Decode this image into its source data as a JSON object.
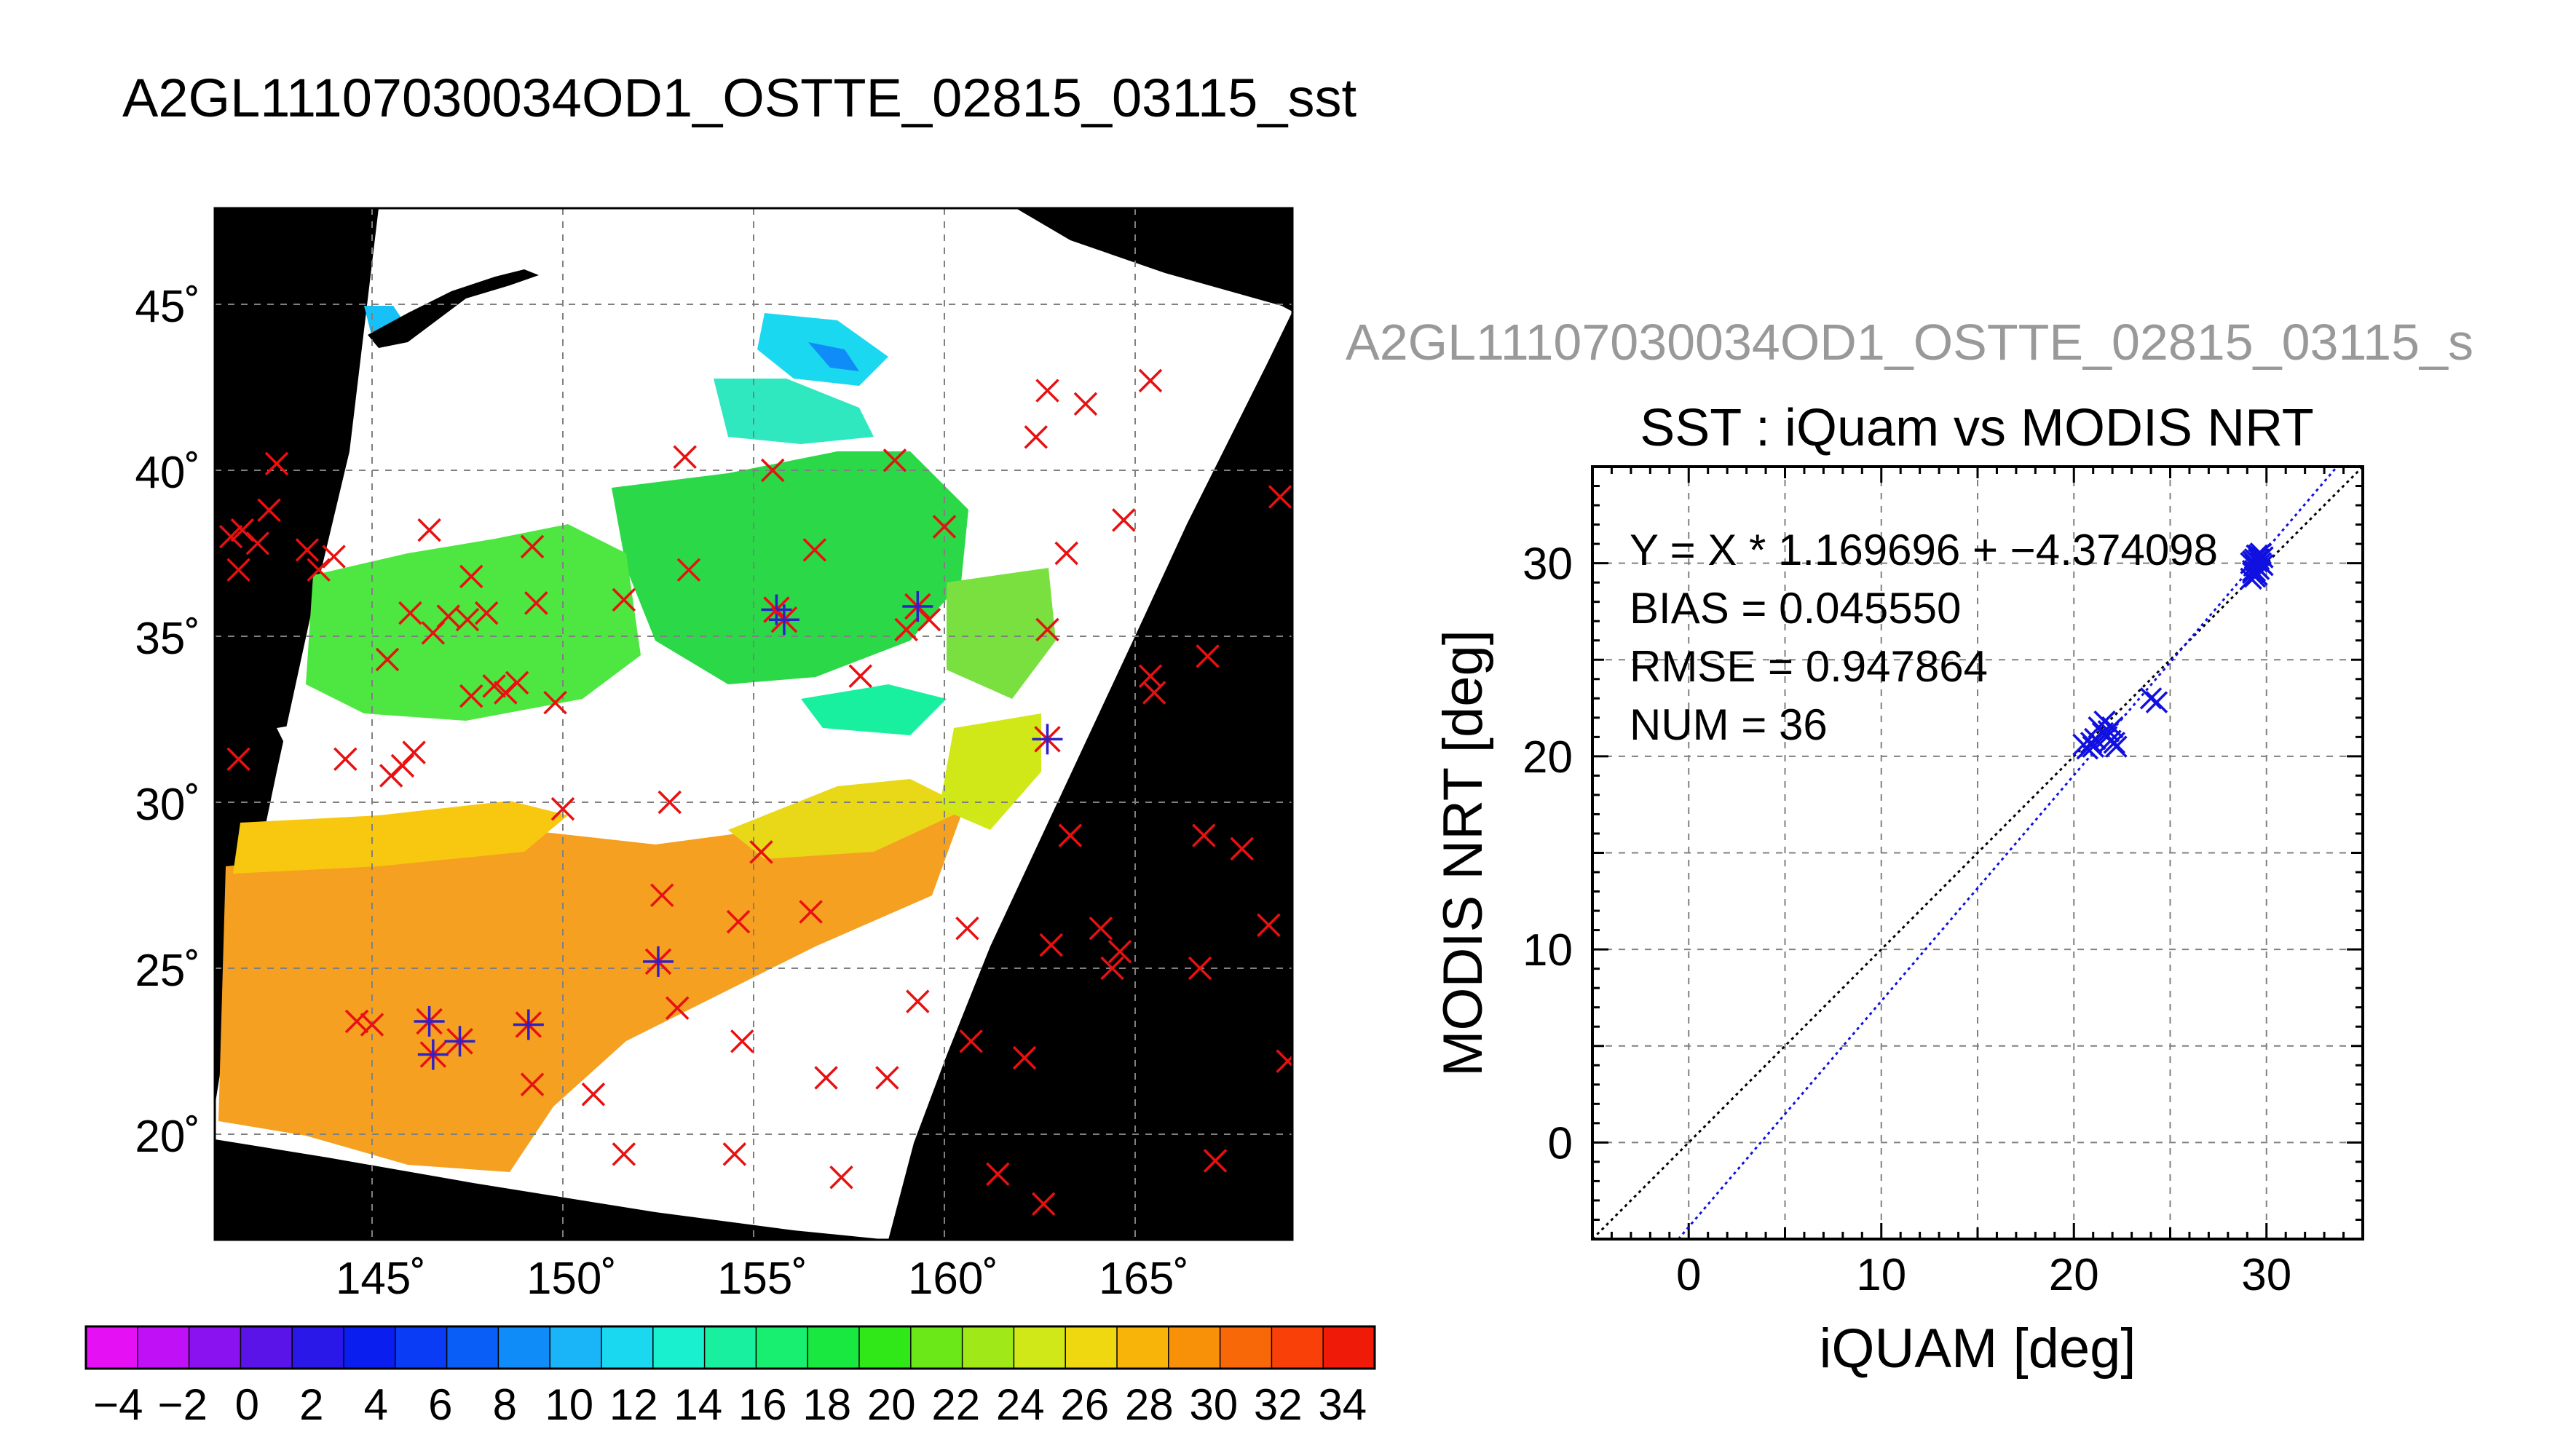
{
  "figure": {
    "main_title": "A2GL11107030034OD1_OSTTE_02815_03115_sst",
    "side_title": "A2GL11107030034OD1_OSTTE_02815_03115_s"
  },
  "chart_data": [
    {
      "type": "map",
      "title": "A2GL11107030034OD1_OSTTE_02815_03115_sst",
      "lon_ticks": [
        "145˚",
        "150˚",
        "155˚",
        "160˚",
        "165˚"
      ],
      "lat_ticks": [
        "45˚",
        "40˚",
        "35˚",
        "30˚",
        "25˚",
        "20˚"
      ],
      "lon_range": [
        141,
        169.5
      ],
      "lat_range": [
        17,
        48
      ],
      "grid": true,
      "colorbar": {
        "ticks": [
          "−4",
          "−2",
          "0",
          "2",
          "4",
          "6",
          "8",
          "10",
          "12",
          "14",
          "16",
          "18",
          "20",
          "22",
          "24",
          "26",
          "28",
          "30",
          "32",
          "34"
        ],
        "tick_values": [
          -4,
          -2,
          0,
          2,
          4,
          6,
          8,
          10,
          12,
          14,
          16,
          18,
          20,
          22,
          24,
          26,
          28,
          30,
          32,
          34
        ],
        "range": [
          -5,
          35
        ],
        "colors": [
          "#e610f5",
          "#c010f5",
          "#8a12f0",
          "#5a14e8",
          "#2a18e8",
          "#0a1ef0",
          "#0a3cf5",
          "#0a5ef8",
          "#108cf8",
          "#1ab4f8",
          "#1ad8f0",
          "#18f0d0",
          "#18f0a0",
          "#18ee70",
          "#18e840",
          "#30e818",
          "#6ae818",
          "#a0e818",
          "#d0e818",
          "#f0d810",
          "#f8b408",
          "#f89008",
          "#f86808",
          "#f84008",
          "#f01a08"
        ]
      },
      "ship_matches": [
        [
          146.5,
          23.4
        ],
        [
          146.6,
          22.4
        ],
        [
          147.3,
          22.8
        ],
        [
          149.1,
          23.3
        ],
        [
          152.5,
          25.2
        ],
        [
          155.6,
          35.8
        ],
        [
          155.8,
          35.5
        ],
        [
          159.3,
          35.9
        ],
        [
          162.7,
          31.9
        ]
      ],
      "no_match": [
        [
          141.3,
          38.0
        ],
        [
          141.5,
          37.0
        ],
        [
          141.6,
          38.2
        ],
        [
          142.0,
          37.8
        ],
        [
          142.3,
          38.8
        ],
        [
          142.5,
          40.2
        ],
        [
          141.5,
          31.3
        ],
        [
          143.3,
          37.6
        ],
        [
          143.6,
          37.0
        ],
        [
          144.0,
          37.4
        ],
        [
          144.3,
          31.3
        ],
        [
          144.6,
          23.4
        ],
        [
          145.0,
          23.3
        ],
        [
          145.4,
          34.3
        ],
        [
          145.5,
          30.8
        ],
        [
          145.8,
          31.1
        ],
        [
          146.0,
          35.7
        ],
        [
          146.1,
          31.5
        ],
        [
          146.5,
          38.2
        ],
        [
          146.6,
          35.1
        ],
        [
          147.0,
          35.6
        ],
        [
          147.5,
          35.5
        ],
        [
          147.6,
          36.8
        ],
        [
          148.0,
          35.7
        ],
        [
          147.6,
          33.2
        ],
        [
          148.2,
          33.5
        ],
        [
          148.5,
          33.3
        ],
        [
          148.8,
          33.6
        ],
        [
          149.2,
          37.7
        ],
        [
          149.2,
          21.5
        ],
        [
          149.3,
          36.0
        ],
        [
          149.8,
          33.0
        ],
        [
          150.0,
          29.8
        ],
        [
          150.8,
          21.2
        ],
        [
          151.6,
          36.1
        ],
        [
          151.6,
          19.4
        ],
        [
          152.6,
          27.2
        ],
        [
          152.8,
          30.0
        ],
        [
          153.0,
          23.8
        ],
        [
          153.2,
          40.4
        ],
        [
          153.3,
          37.0
        ],
        [
          154.5,
          19.4
        ],
        [
          154.6,
          26.4
        ],
        [
          154.7,
          22.8
        ],
        [
          155.2,
          28.5
        ],
        [
          155.5,
          40.0
        ],
        [
          156.5,
          26.7
        ],
        [
          156.6,
          37.6
        ],
        [
          156.9,
          21.7
        ],
        [
          157.3,
          18.7
        ],
        [
          157.8,
          33.8
        ],
        [
          158.5,
          21.7
        ],
        [
          158.7,
          40.3
        ],
        [
          159.0,
          35.2
        ],
        [
          159.3,
          24.0
        ],
        [
          159.6,
          35.5
        ],
        [
          160.0,
          38.3
        ],
        [
          160.6,
          26.2
        ],
        [
          160.7,
          22.8
        ],
        [
          161.4,
          18.8
        ],
        [
          162.1,
          22.3
        ],
        [
          162.4,
          41.0
        ],
        [
          162.6,
          17.9
        ],
        [
          162.7,
          35.2
        ],
        [
          162.7,
          42.4
        ],
        [
          162.8,
          25.7
        ],
        [
          163.2,
          37.5
        ],
        [
          163.3,
          29.0
        ],
        [
          163.7,
          42.0
        ],
        [
          164.1,
          26.2
        ],
        [
          164.4,
          25.0
        ],
        [
          164.6,
          25.5
        ],
        [
          164.7,
          38.5
        ],
        [
          165.4,
          42.7
        ],
        [
          165.4,
          33.8
        ],
        [
          165.5,
          33.3
        ],
        [
          166.8,
          29.0
        ],
        [
          166.7,
          25.0
        ],
        [
          166.9,
          34.4
        ],
        [
          167.1,
          19.2
        ],
        [
          167.8,
          28.6
        ],
        [
          168.5,
          26.3
        ],
        [
          168.8,
          39.2
        ],
        [
          169.0,
          22.2
        ]
      ]
    },
    {
      "type": "scatter",
      "title": "SST : iQuam vs MODIS NRT",
      "xlabel": "iQUAM [deg]",
      "ylabel": "MODIS NRT [deg]",
      "xlim": [
        -5,
        35
      ],
      "ylim": [
        -5,
        35
      ],
      "xticks": [
        0,
        10,
        20,
        30
      ],
      "yticks": [
        0,
        10,
        20,
        30
      ],
      "grid": true,
      "annotations": [
        "Y = X * 1.169696 + −4.374098",
        "BIAS = 0.045550",
        "RMSE = 0.947864",
        "NUM = 36"
      ],
      "fit": {
        "slope": 1.169696,
        "intercept": -4.374098
      },
      "points": [
        [
          20.5,
          20.6
        ],
        [
          20.7,
          20.4
        ],
        [
          21.0,
          20.5
        ],
        [
          21.3,
          21.5
        ],
        [
          21.6,
          21.8
        ],
        [
          21.5,
          21.2
        ],
        [
          21.9,
          20.8
        ],
        [
          22.2,
          20.5
        ],
        [
          22.0,
          21.5
        ],
        [
          21.7,
          21.0
        ],
        [
          24.0,
          23.0
        ],
        [
          24.3,
          22.8
        ],
        [
          29.2,
          29.2
        ],
        [
          29.3,
          29.6
        ],
        [
          29.4,
          29.9
        ],
        [
          29.5,
          30.1
        ],
        [
          29.6,
          30.4
        ],
        [
          29.7,
          30.0
        ],
        [
          29.5,
          29.4
        ],
        [
          29.4,
          30.2
        ],
        [
          29.8,
          30.3
        ],
        [
          29.3,
          29.5
        ],
        [
          29.6,
          29.7
        ],
        [
          29.2,
          30.0
        ],
        [
          29.7,
          30.5
        ],
        [
          29.5,
          29.8
        ],
        [
          29.4,
          29.3
        ],
        [
          29.6,
          30.2
        ],
        [
          29.3,
          30.1
        ],
        [
          29.8,
          29.9
        ],
        [
          29.5,
          30.4
        ],
        [
          21.1,
          20.9
        ],
        [
          21.8,
          21.3
        ],
        [
          22.1,
          20.7
        ],
        [
          20.9,
          20.7
        ],
        [
          29.4,
          29.6
        ]
      ]
    }
  ]
}
